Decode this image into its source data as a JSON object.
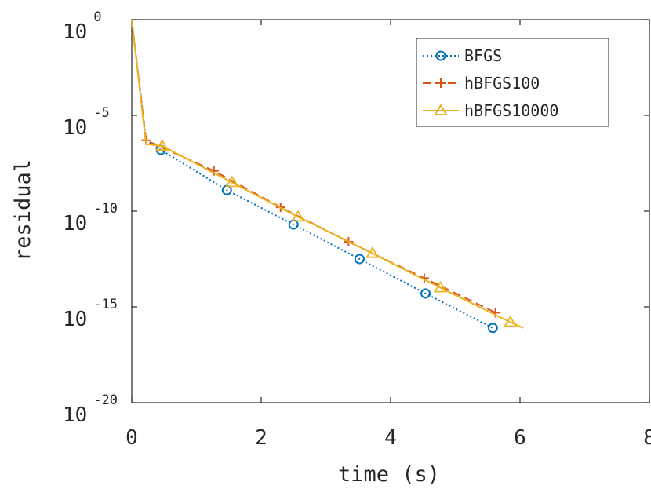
{
  "chart_data": {
    "type": "line",
    "title": "",
    "xlabel": "time (s)",
    "ylabel": "residual",
    "xlim": [
      0,
      8
    ],
    "ylim": [
      1e-20,
      1
    ],
    "yscale": "log",
    "grid": false,
    "legend_position": "top-right",
    "x_ticks": [
      0,
      2,
      4,
      6,
      8
    ],
    "x_tick_labels": [
      "0",
      "2",
      "4",
      "6",
      "8"
    ],
    "y_ticks": [
      1e-20,
      1e-15,
      1e-10,
      1e-05,
      1
    ],
    "y_tick_base": "10",
    "y_tick_exponents": [
      "-20",
      "-15",
      "-10",
      "-5",
      "0"
    ],
    "series": [
      {
        "name": "BFGS",
        "color": "#0072BD",
        "line_style": "dotted",
        "marker": "circle",
        "x": [
          0,
          0.22,
          0.45,
          1.47,
          2.5,
          3.52,
          4.54,
          5.58
        ],
        "y_log10": [
          0,
          -6.3,
          -6.8,
          -8.9,
          -10.7,
          -12.5,
          -14.3,
          -16.1
        ],
        "marker_indices": [
          2,
          3,
          4,
          5,
          6,
          7
        ]
      },
      {
        "name": "hBFGS100",
        "color": "#D95319",
        "line_style": "dashed",
        "marker": "plus",
        "x": [
          0,
          0.22,
          1.27,
          2.3,
          3.35,
          4.52,
          5.62
        ],
        "y_log10": [
          0,
          -6.3,
          -7.9,
          -9.8,
          -11.6,
          -13.5,
          -15.3
        ],
        "marker_indices": [
          1,
          2,
          3,
          4,
          5,
          6
        ]
      },
      {
        "name": "hBFGS10000",
        "color": "#EDB120",
        "line_style": "solid",
        "marker": "triangle",
        "x": [
          0,
          0.22,
          0.47,
          1.55,
          2.57,
          3.72,
          4.77,
          5.85,
          6.05
        ],
        "y_log10": [
          0,
          -6.5,
          -6.6,
          -8.5,
          -10.3,
          -12.2,
          -14.0,
          -15.8,
          -16.1
        ],
        "marker_indices": [
          2,
          3,
          4,
          5,
          6,
          7
        ]
      }
    ]
  }
}
